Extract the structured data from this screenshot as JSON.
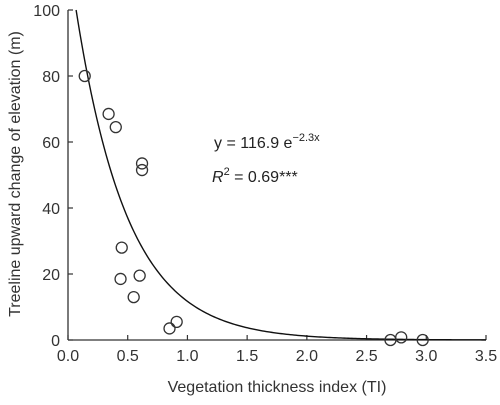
{
  "chart_data": {
    "type": "scatter",
    "title": "",
    "xlabel": "Vegetation thickness index (TI)",
    "ylabel": "Treeline upward change of elevation (m)",
    "xlim": [
      0.0,
      3.5
    ],
    "ylim": [
      0,
      100
    ],
    "xticks": [
      "0.0",
      "0.5",
      "1.0",
      "1.5",
      "2.0",
      "2.5",
      "3.0",
      "3.5"
    ],
    "yticks": [
      "0",
      "20",
      "40",
      "60",
      "80",
      "100"
    ],
    "grid": false,
    "legend": "none",
    "series": [
      {
        "marker": "open-circle",
        "points": [
          {
            "x": 0.14,
            "y": 80.0
          },
          {
            "x": 0.34,
            "y": 68.5
          },
          {
            "x": 0.4,
            "y": 64.5
          },
          {
            "x": 0.62,
            "y": 53.5
          },
          {
            "x": 0.62,
            "y": 51.5
          },
          {
            "x": 0.45,
            "y": 28.0
          },
          {
            "x": 0.6,
            "y": 19.5
          },
          {
            "x": 0.44,
            "y": 18.5
          },
          {
            "x": 0.55,
            "y": 13.0
          },
          {
            "x": 0.91,
            "y": 5.5
          },
          {
            "x": 0.85,
            "y": 3.5
          },
          {
            "x": 2.7,
            "y": 0.0
          },
          {
            "x": 2.79,
            "y": 0.8
          },
          {
            "x": 2.97,
            "y": 0.0
          }
        ]
      }
    ],
    "fit": {
      "type": "exponential",
      "a": 116.9,
      "b": -2.3,
      "color": "#111111"
    },
    "annotations": {
      "equation_main": "y = 116.9 e",
      "equation_exp": "−2.3x",
      "r2_r": "R",
      "r2_sup": "2",
      "r2_value": " = 0.69***"
    },
    "colors": {
      "axis": "#333333",
      "marker_stroke": "#333333",
      "curve": "#111111"
    }
  }
}
